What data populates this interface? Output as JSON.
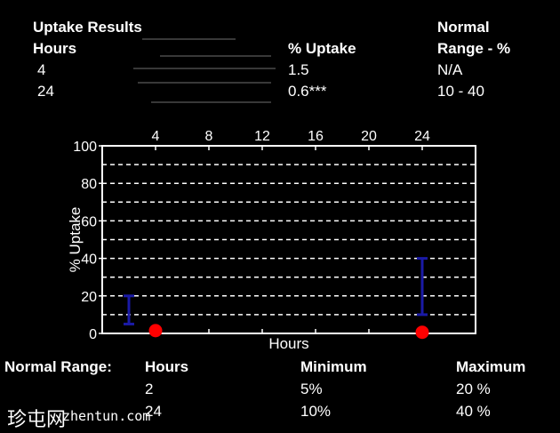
{
  "results": {
    "title": "Uptake Results",
    "col_hours": "Hours",
    "col_uptake": "% Uptake",
    "col_normal_l1": "Normal",
    "col_normal_l2": "Range - %",
    "rows": [
      {
        "hours": "4",
        "uptake": "1.5",
        "range": "N/A"
      },
      {
        "hours": "24",
        "uptake": "0.6***",
        "range": "10 - 40"
      }
    ]
  },
  "chart_data": {
    "type": "scatter",
    "xlabel": "Hours",
    "ylabel": "% Uptake",
    "xlim": [
      0,
      28
    ],
    "ylim": [
      0,
      100
    ],
    "x_ticks": [
      "4",
      "8",
      "12",
      "16",
      "20",
      "24"
    ],
    "y_ticks": [
      "0",
      "20",
      "40",
      "60",
      "80",
      "100"
    ],
    "grid": true,
    "grid_style": "dashed",
    "points": [
      {
        "x": 4,
        "y": 1.5
      },
      {
        "x": 24,
        "y": 0.6
      }
    ],
    "normal_ranges": [
      {
        "x": 2,
        "min": 5,
        "max": 20
      },
      {
        "x": 24,
        "min": 10,
        "max": 40
      }
    ],
    "point_color": "#ff0000",
    "range_color": "#1a1aa6",
    "axis_color": "#ffffff"
  },
  "normal_range_table": {
    "label": "Normal Range:",
    "col_hours": "Hours",
    "col_min": "Minimum",
    "col_max": "Maximum",
    "rows": [
      {
        "hours": "2",
        "min": "5%",
        "max": "20 %"
      },
      {
        "hours": "24",
        "min": "10%",
        "max": "40 %"
      }
    ]
  },
  "watermark": {
    "chinese": "珍屯网",
    "site": "zhentun.com"
  }
}
